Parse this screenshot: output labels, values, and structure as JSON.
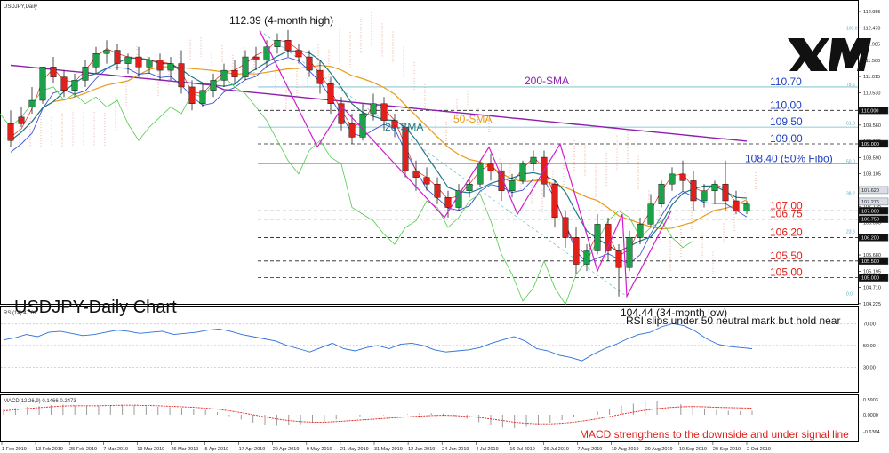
{
  "chart_data": {
    "type": "candlestick",
    "symbol_label": "USDJPY,Daily",
    "title": "USDJPY-Daily Chart",
    "logo": "XM",
    "price_axis_ticks": [
      "112.955",
      "112.470",
      "111.985",
      "111.500",
      "111.015",
      "110.530",
      "110.045",
      "109.560",
      "109.075",
      "108.590",
      "108.105",
      "107.620",
      "107.135",
      "106.650",
      "106.165",
      "105.680",
      "105.195",
      "104.710",
      "104.225"
    ],
    "price_axis_badges": [
      {
        "label": "110.000",
        "value": 110.0,
        "style": "dark"
      },
      {
        "label": "109.000",
        "value": 109.0,
        "style": "dark"
      },
      {
        "label": "107.620",
        "value": 107.62,
        "style": "light"
      },
      {
        "label": "107.276",
        "value": 107.276,
        "style": "light"
      },
      {
        "label": "107.000",
        "value": 107.0,
        "style": "dark"
      },
      {
        "label": "106.750",
        "value": 106.75,
        "style": "dark"
      },
      {
        "label": "106.200",
        "value": 106.2,
        "style": "dark"
      },
      {
        "label": "105.500",
        "value": 105.5,
        "style": "dark"
      },
      {
        "label": "105.000",
        "value": 105.0,
        "style": "dark"
      }
    ],
    "date_labels": [
      "1 Feb 2019",
      "13 Feb 2019",
      "25 Feb 2019",
      "7 Mar 2019",
      "19 Mar 2019",
      "26 Mar 2019",
      "5 Apr 2019",
      "17 Apr 2019",
      "29 Apr 2019",
      "9 May 2019",
      "21 May 2019",
      "31 May 2019",
      "12 Jun 2019",
      "24 Jun 2019",
      "4 Jul 2019",
      "16 Jul 2019",
      "26 Jul 2019",
      "7 Aug 2019",
      "19 Aug 2019",
      "29 Aug 2019",
      "10 Sep 2019",
      "20 Sep 2019",
      "2 Oct 2019"
    ],
    "levels": [
      {
        "label": "110.70",
        "value": 110.7,
        "color": "#1f3fbf",
        "line": "solid"
      },
      {
        "label": "110.00",
        "value": 110.0,
        "color": "#1f3fbf",
        "line": "dash"
      },
      {
        "label": "109.50",
        "value": 109.5,
        "color": "#1f3fbf",
        "line": "solid"
      },
      {
        "label": "109.00",
        "value": 109.0,
        "color": "#1f3fbf",
        "line": "dash"
      },
      {
        "label": "108.40 (50% Fibo)",
        "value": 108.4,
        "color": "#1f3fbf",
        "line": "solid"
      },
      {
        "label": "107.00",
        "value": 107.0,
        "color": "#e0201b",
        "line": "dash"
      },
      {
        "label": "106.75",
        "value": 106.75,
        "color": "#e0201b",
        "line": "dash"
      },
      {
        "label": "106.20",
        "value": 106.2,
        "color": "#e0201b",
        "line": "dash"
      },
      {
        "label": "105.50",
        "value": 105.5,
        "color": "#e0201b",
        "line": "dash"
      },
      {
        "label": "105.00",
        "value": 105.0,
        "color": "#e0201b",
        "line": "dash"
      }
    ],
    "fibo_labels": [
      "100.0",
      "78.6",
      "61.8",
      "50.0",
      "38.2",
      "23.6",
      "0.0"
    ],
    "annotations": {
      "high": "112.39 (4-month high)",
      "low": "104.44 (34-month low)",
      "sma200": "200-SMA",
      "sma50": "50-SMA",
      "sma20": "20-SMA",
      "rsi_note": "RSI slips under 50 neutral mark but hold near",
      "macd_note": "MACD strengthens to the downside and under signal line"
    },
    "rsi": {
      "label": "RSI(14) 47.69",
      "ticks": [
        "70.00",
        "50.00",
        "30.00"
      ],
      "values": [
        55,
        57,
        60,
        58,
        62,
        63,
        61,
        59,
        60,
        62,
        64,
        63,
        61,
        62,
        63,
        60,
        61,
        62,
        64,
        65,
        63,
        60,
        58,
        56,
        54,
        50,
        47,
        44,
        48,
        52,
        47,
        45,
        48,
        50,
        47,
        51,
        52,
        50,
        46,
        44,
        45,
        46,
        48,
        52,
        55,
        58,
        54,
        47,
        45,
        41,
        39,
        36,
        42,
        47,
        51,
        56,
        60,
        62,
        67,
        70,
        68,
        63,
        56,
        51,
        49,
        48,
        47
      ]
    },
    "macd": {
      "label": "MACD(12,26,9) 0.1466 0.2473",
      "ticks": [
        "0.5903",
        "0.0000",
        "-0.6364"
      ],
      "hist": [
        0.2,
        0.25,
        0.3,
        0.32,
        0.36,
        0.38,
        0.35,
        0.33,
        0.34,
        0.36,
        0.38,
        0.35,
        0.32,
        0.3,
        0.28,
        0.26,
        0.22,
        0.18,
        0.1,
        -0.05,
        -0.18,
        -0.3,
        -0.38,
        -0.42,
        -0.4,
        -0.36,
        -0.3,
        -0.25,
        -0.18,
        -0.1,
        -0.06,
        -0.04,
        -0.02,
        0.0,
        0.02,
        0.05,
        0.06,
        0.04,
        -0.05,
        -0.15,
        -0.28,
        -0.4,
        -0.48,
        -0.5,
        -0.45,
        -0.38,
        -0.3,
        -0.2,
        -0.1,
        0.0,
        0.12,
        0.24,
        0.34,
        0.42,
        0.48,
        0.5,
        0.46,
        0.4,
        0.32,
        0.24,
        0.18,
        0.15,
        0.14,
        0.15
      ],
      "signal": [
        0.15,
        0.19,
        0.23,
        0.27,
        0.3,
        0.33,
        0.34,
        0.34,
        0.34,
        0.35,
        0.36,
        0.36,
        0.35,
        0.34,
        0.32,
        0.3,
        0.28,
        0.25,
        0.21,
        0.15,
        0.08,
        0.0,
        -0.08,
        -0.16,
        -0.22,
        -0.26,
        -0.28,
        -0.28,
        -0.26,
        -0.23,
        -0.2,
        -0.17,
        -0.14,
        -0.11,
        -0.08,
        -0.05,
        -0.03,
        -0.02,
        -0.03,
        -0.06,
        -0.1,
        -0.16,
        -0.22,
        -0.28,
        -0.32,
        -0.34,
        -0.34,
        -0.32,
        -0.28,
        -0.22,
        -0.15,
        -0.07,
        0.02,
        0.1,
        0.17,
        0.23,
        0.27,
        0.3,
        0.31,
        0.3,
        0.28,
        0.27,
        0.26,
        0.25
      ]
    },
    "candles": [
      [
        109.6,
        110.0,
        109.1,
        108.9
      ],
      [
        109.8,
        110.1,
        109.6,
        109.5
      ],
      [
        110.1,
        110.7,
        110.3,
        109.9
      ],
      [
        110.3,
        111.0,
        111.3,
        110.2
      ],
      [
        111.3,
        111.6,
        111.0,
        110.8
      ],
      [
        111.0,
        111.2,
        110.6,
        110.4
      ],
      [
        110.6,
        111.1,
        110.9,
        110.4
      ],
      [
        110.9,
        111.5,
        111.3,
        110.7
      ],
      [
        111.3,
        111.9,
        111.7,
        111.1
      ],
      [
        111.7,
        112.1,
        111.8,
        111.4
      ],
      [
        111.8,
        112.0,
        111.4,
        111.2
      ],
      [
        111.4,
        111.7,
        111.6,
        111.1
      ],
      [
        111.6,
        111.9,
        111.3,
        111.0
      ],
      [
        111.3,
        111.6,
        111.5,
        111.1
      ],
      [
        111.5,
        111.7,
        111.2,
        110.9
      ],
      [
        111.2,
        111.6,
        111.4,
        110.9
      ],
      [
        111.4,
        111.8,
        110.7,
        110.5
      ],
      [
        110.7,
        110.9,
        110.2,
        110.0
      ],
      [
        110.2,
        110.8,
        110.6,
        110.1
      ],
      [
        110.6,
        111.1,
        110.9,
        110.4
      ],
      [
        110.9,
        111.4,
        111.2,
        110.7
      ],
      [
        111.2,
        111.5,
        111.0,
        110.8
      ],
      [
        111.0,
        111.8,
        111.6,
        110.9
      ],
      [
        111.6,
        111.9,
        111.5,
        111.2
      ],
      [
        111.5,
        112.1,
        111.9,
        111.3
      ],
      [
        111.9,
        112.3,
        112.1,
        111.7
      ],
      [
        112.1,
        112.4,
        111.8,
        111.6
      ],
      [
        111.8,
        112.0,
        111.6,
        111.4
      ],
      [
        111.6,
        111.8,
        111.2,
        111.0
      ],
      [
        111.2,
        111.5,
        110.8,
        110.5
      ],
      [
        110.8,
        111.0,
        110.2,
        109.9
      ],
      [
        110.2,
        110.4,
        109.6,
        109.4
      ],
      [
        109.6,
        109.9,
        109.2,
        109.0
      ],
      [
        109.2,
        110.2,
        109.9,
        109.1
      ],
      [
        109.9,
        110.5,
        110.2,
        109.7
      ],
      [
        110.2,
        110.4,
        109.7,
        109.4
      ],
      [
        109.7,
        109.9,
        109.5,
        109.2
      ],
      [
        109.5,
        109.6,
        108.2,
        108.0
      ],
      [
        108.2,
        108.5,
        108.0,
        107.6
      ],
      [
        108.0,
        108.3,
        107.8,
        107.6
      ],
      [
        107.8,
        108.0,
        107.4,
        107.2
      ],
      [
        107.4,
        107.6,
        107.1,
        106.8
      ],
      [
        107.1,
        107.8,
        107.6,
        107.0
      ],
      [
        107.6,
        108.0,
        107.8,
        107.4
      ],
      [
        107.8,
        108.5,
        108.4,
        107.7
      ],
      [
        108.4,
        108.7,
        108.2,
        107.9
      ],
      [
        108.2,
        108.4,
        107.6,
        107.3
      ],
      [
        107.6,
        108.1,
        107.9,
        107.4
      ],
      [
        107.9,
        108.5,
        108.4,
        107.8
      ],
      [
        108.4,
        108.8,
        108.6,
        108.2
      ],
      [
        108.6,
        108.8,
        107.8,
        107.4
      ],
      [
        107.8,
        107.9,
        106.8,
        106.5
      ],
      [
        106.8,
        107.0,
        106.2,
        105.9
      ],
      [
        106.2,
        106.5,
        105.4,
        105.1
      ],
      [
        105.4,
        106.0,
        105.8,
        105.2
      ],
      [
        105.8,
        106.9,
        106.6,
        105.7
      ],
      [
        106.6,
        106.8,
        105.8,
        105.5
      ],
      [
        105.8,
        106.0,
        105.3,
        104.44
      ],
      [
        105.3,
        106.4,
        106.2,
        105.2
      ],
      [
        106.2,
        106.8,
        106.6,
        106.0
      ],
      [
        106.6,
        107.5,
        107.2,
        106.5
      ],
      [
        107.2,
        107.9,
        107.8,
        107.1
      ],
      [
        107.8,
        108.3,
        108.1,
        107.6
      ],
      [
        108.1,
        108.5,
        107.9,
        107.6
      ],
      [
        107.9,
        108.2,
        107.3,
        107.0
      ],
      [
        107.3,
        107.8,
        107.6,
        107.1
      ],
      [
        107.6,
        107.9,
        107.8,
        107.2
      ],
      [
        107.8,
        108.5,
        107.3,
        107.0
      ],
      [
        107.3,
        107.6,
        107.0,
        106.9
      ],
      [
        107.0,
        107.3,
        107.2,
        106.9
      ]
    ]
  }
}
